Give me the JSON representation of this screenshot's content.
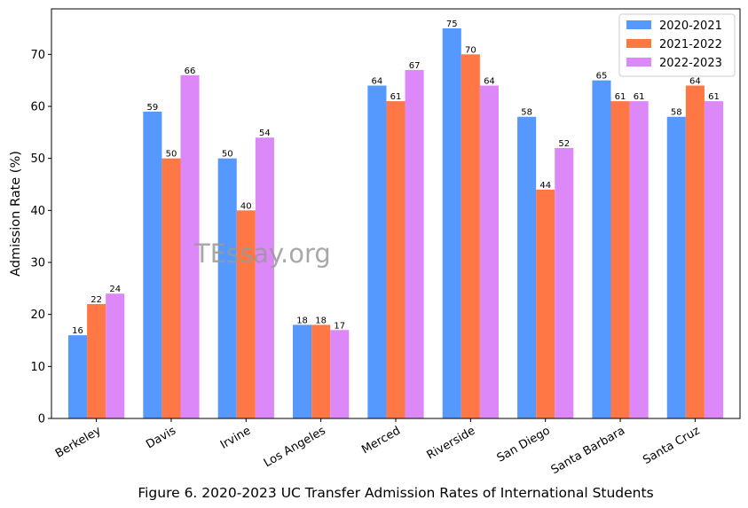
{
  "caption": "Figure 6. 2020-2023 UC Transfer Admission Rates of International Students",
  "watermark": "TEssay.org",
  "chart_data": {
    "type": "bar",
    "categories": [
      "Berkeley",
      "Davis",
      "Irvine",
      "Los Angeles",
      "Merced",
      "Riverside",
      "San Diego",
      "Santa Barbara",
      "Santa Cruz"
    ],
    "series": [
      {
        "name": "2020-2021",
        "color": "#5599ff",
        "values": [
          16,
          59,
          50,
          18,
          64,
          75,
          58,
          65,
          58
        ]
      },
      {
        "name": "2021-2022",
        "color": "#ff7744",
        "values": [
          22,
          50,
          40,
          18,
          61,
          70,
          44,
          61,
          64
        ]
      },
      {
        "name": "2022-2023",
        "color": "#dd88f8",
        "values": [
          24,
          66,
          54,
          17,
          67,
          64,
          52,
          61,
          61
        ]
      }
    ],
    "title": "",
    "xlabel": "",
    "ylabel": "Admission Rate (%)",
    "ylim": [
      0,
      78.75
    ],
    "yticks": [
      0,
      10,
      20,
      30,
      40,
      50,
      60,
      70
    ],
    "grid": false,
    "legend_position": "top-right"
  }
}
